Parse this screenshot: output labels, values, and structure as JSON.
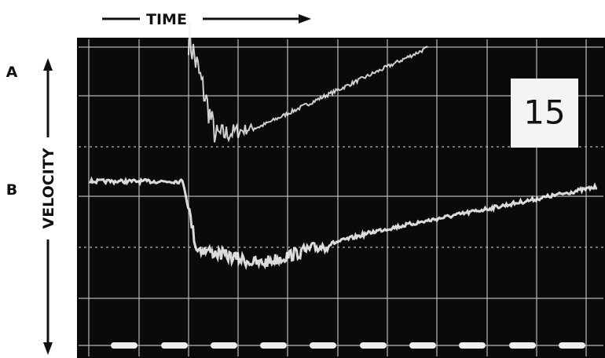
{
  "labels": {
    "time": "TIME",
    "velocity": "VELOCITY",
    "trace_a": "A",
    "trace_b": "B",
    "frame": "15"
  }
}
